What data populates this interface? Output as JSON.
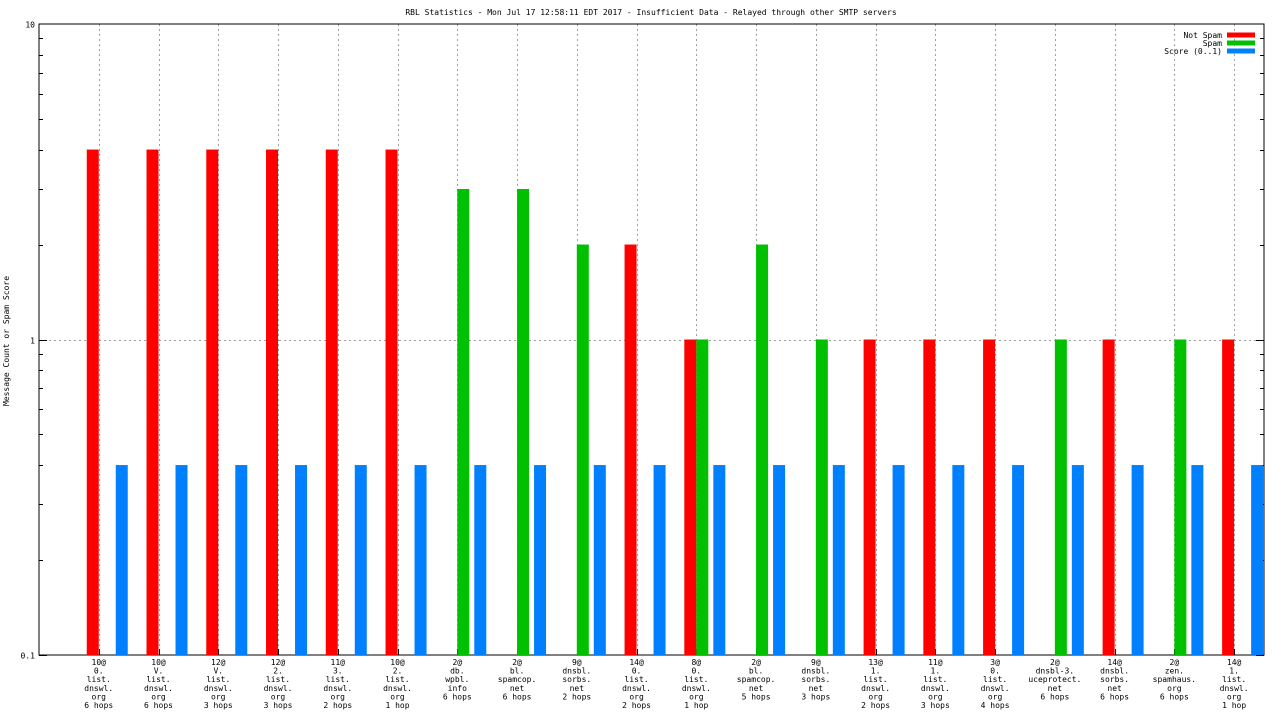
{
  "chart_data": {
    "type": "bar",
    "title": "RBL Statistics - Mon Jul 17 12:58:11 EDT 2017 - Insufficient Data - Relayed through other SMTP servers",
    "xlabel": "",
    "ylabel": "Message Count or Spam Score",
    "yscale": "log",
    "ylim": [
      0.1,
      10
    ],
    "y_tick_labels": [
      "0.1",
      "1",
      "10"
    ],
    "grid": true,
    "legend_position": "top-right",
    "categories": [
      [
        "10@",
        "0.",
        "list.",
        "dnswl.",
        "org",
        "6 hops"
      ],
      [
        "10@",
        "V.",
        "list.",
        "dnswl.",
        "org",
        "6 hops"
      ],
      [
        "12@",
        "V.",
        "list.",
        "dnswl.",
        "org",
        "3 hops"
      ],
      [
        "12@",
        "2.",
        "list.",
        "dnswl.",
        "org",
        "3 hops"
      ],
      [
        "11@",
        "3.",
        "list.",
        "dnswl.",
        "org",
        "2 hops"
      ],
      [
        "10@",
        "2.",
        "list.",
        "dnswl.",
        "org",
        "1 hop"
      ],
      [
        "2@",
        "db.",
        "wpbl.",
        "info",
        "6 hops"
      ],
      [
        "2@",
        "bl.",
        "spamcop.",
        "net",
        "6 hops"
      ],
      [
        "9@",
        "dnsbl.",
        "sorbs.",
        "net",
        "2 hops"
      ],
      [
        "14@",
        "0.",
        "list.",
        "dnswl.",
        "org",
        "2 hops"
      ],
      [
        "8@",
        "0.",
        "list.",
        "dnswl.",
        "org",
        "1 hop"
      ],
      [
        "2@",
        "bl.",
        "spamcop.",
        "net",
        "5 hops"
      ],
      [
        "9@",
        "dnsbl.",
        "sorbs.",
        "net",
        "3 hops"
      ],
      [
        "13@",
        "1.",
        "list.",
        "dnswl.",
        "org",
        "2 hops"
      ],
      [
        "11@",
        "1.",
        "list.",
        "dnswl.",
        "org",
        "3 hops"
      ],
      [
        "3@",
        "0.",
        "list.",
        "dnswl.",
        "org",
        "4 hops"
      ],
      [
        "2@",
        "dnsbl-3.",
        "uceprotect.",
        "net",
        "6 hops"
      ],
      [
        "14@",
        "dnsbl.",
        "sorbs.",
        "net",
        "6 hops"
      ],
      [
        "2@",
        "zen.",
        "spamhaus.",
        "org",
        "6 hops"
      ],
      [
        "14@",
        "1.",
        "list.",
        "dnswl.",
        "org",
        "1 hop"
      ]
    ],
    "series": [
      {
        "name": "Not Spam",
        "color": "#ff0000",
        "values": [
          4,
          4,
          4,
          4,
          4,
          4,
          0,
          0,
          0,
          2,
          1,
          0,
          0,
          1,
          1,
          1,
          0,
          1,
          0,
          1
        ]
      },
      {
        "name": "Spam",
        "color": "#00c000",
        "values": [
          0,
          0,
          0,
          0,
          0,
          0,
          3,
          3,
          2,
          0,
          1,
          2,
          1,
          0,
          0,
          0,
          1,
          0,
          1,
          0
        ]
      },
      {
        "name": "Score (0..1)",
        "color": "#0080ff",
        "values": [
          0.4,
          0.4,
          0.4,
          0.4,
          0.4,
          0.4,
          0.4,
          0.4,
          0.4,
          0.4,
          0.4,
          0.4,
          0.4,
          0.4,
          0.4,
          0.4,
          0.4,
          0.4,
          0.4,
          0.4
        ]
      }
    ]
  }
}
